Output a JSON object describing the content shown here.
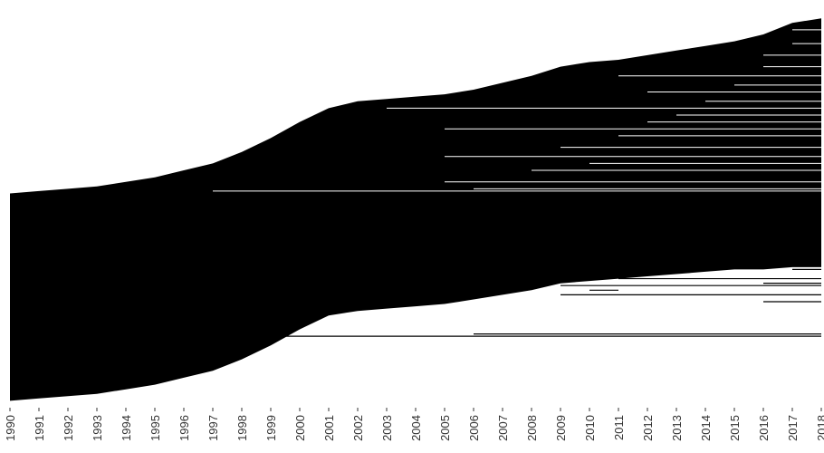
{
  "chart_data": {
    "type": "area",
    "title": "",
    "xlabel": "",
    "ylabel": "",
    "xlim": [
      1990,
      2018
    ],
    "grid": false,
    "legend": "none",
    "x_ticks": [
      "1990",
      "1991",
      "1992",
      "1993",
      "1994",
      "1995",
      "1996",
      "1997",
      "1998",
      "1999",
      "2000",
      "2001",
      "2002",
      "2003",
      "2004",
      "2005",
      "2006",
      "2007",
      "2008",
      "2009",
      "2010",
      "2011",
      "2012",
      "2013",
      "2014",
      "2015",
      "2016",
      "2017",
      "2018"
    ],
    "band_edges": {
      "x": [
        1990,
        1991,
        1992,
        1993,
        1994,
        1995,
        1996,
        1997,
        1998,
        1999,
        2000,
        2001,
        2002,
        2003,
        2004,
        2005,
        2006,
        2007,
        2008,
        2009,
        2010,
        2011,
        2012,
        2013,
        2014,
        2015,
        2016,
        2017,
        2018
      ],
      "upper": [
        0.45,
        0.46,
        0.47,
        0.48,
        0.5,
        0.52,
        0.55,
        0.58,
        0.63,
        0.69,
        0.76,
        0.82,
        0.85,
        0.86,
        0.87,
        0.88,
        0.9,
        0.93,
        0.96,
        1.0,
        1.02,
        1.03,
        1.05,
        1.07,
        1.09,
        1.11,
        1.14,
        1.19,
        1.21
      ],
      "lower": [
        -0.45,
        -0.44,
        -0.43,
        -0.42,
        -0.4,
        -0.38,
        -0.35,
        -0.32,
        -0.27,
        -0.21,
        -0.14,
        -0.08,
        -0.06,
        -0.05,
        -0.04,
        -0.03,
        -0.01,
        0.01,
        0.03,
        0.06,
        0.07,
        0.08,
        0.09,
        0.1,
        0.11,
        0.12,
        0.12,
        0.13,
        0.13
      ]
    },
    "white_lines_upper": [
      {
        "y": 0.46,
        "x0": 1997,
        "x1": 2018
      },
      {
        "y": 0.47,
        "x0": 2006,
        "x1": 2018
      },
      {
        "y": 0.5,
        "x0": 2005,
        "x1": 2018
      },
      {
        "y": 0.55,
        "x0": 2008,
        "x1": 2018
      },
      {
        "y": 0.58,
        "x0": 2010,
        "x1": 2018
      },
      {
        "y": 0.61,
        "x0": 2005,
        "x1": 2018
      },
      {
        "y": 0.65,
        "x0": 2009,
        "x1": 2018
      },
      {
        "y": 0.7,
        "x0": 2011,
        "x1": 2018
      },
      {
        "y": 0.73,
        "x0": 2005,
        "x1": 2018
      },
      {
        "y": 0.76,
        "x0": 2012,
        "x1": 2018
      },
      {
        "y": 0.79,
        "x0": 2013,
        "x1": 2018
      },
      {
        "y": 0.82,
        "x0": 2003,
        "x1": 2018
      },
      {
        "y": 0.85,
        "x0": 2014,
        "x1": 2018
      },
      {
        "y": 0.89,
        "x0": 2012,
        "x1": 2018
      },
      {
        "y": 0.92,
        "x0": 2015,
        "x1": 2018
      },
      {
        "y": 0.96,
        "x0": 2011,
        "x1": 2018
      },
      {
        "y": 1.0,
        "x0": 2016,
        "x1": 2018
      },
      {
        "y": 1.05,
        "x0": 2016,
        "x1": 2018
      },
      {
        "y": 1.1,
        "x0": 2017,
        "x1": 2018
      },
      {
        "y": 1.16,
        "x0": 2017,
        "x1": 2018
      }
    ],
    "black_lines_lower": [
      {
        "y": 0.12,
        "x0": 2017,
        "x1": 2018
      },
      {
        "y": 0.08,
        "x0": 2011,
        "x1": 2018
      },
      {
        "y": 0.06,
        "x0": 2016,
        "x1": 2018
      },
      {
        "y": 0.05,
        "x0": 2009,
        "x1": 2018
      },
      {
        "y": 0.03,
        "x0": 2010,
        "x1": 2011
      },
      {
        "y": 0.01,
        "x0": 2009,
        "x1": 2018
      },
      {
        "y": -0.02,
        "x0": 2016,
        "x1": 2018
      },
      {
        "y": -0.16,
        "x0": 2006,
        "x1": 2018
      },
      {
        "y": -0.17,
        "x0": 1996,
        "x1": 2018
      }
    ],
    "ylim": [
      -0.48,
      1.25
    ]
  }
}
